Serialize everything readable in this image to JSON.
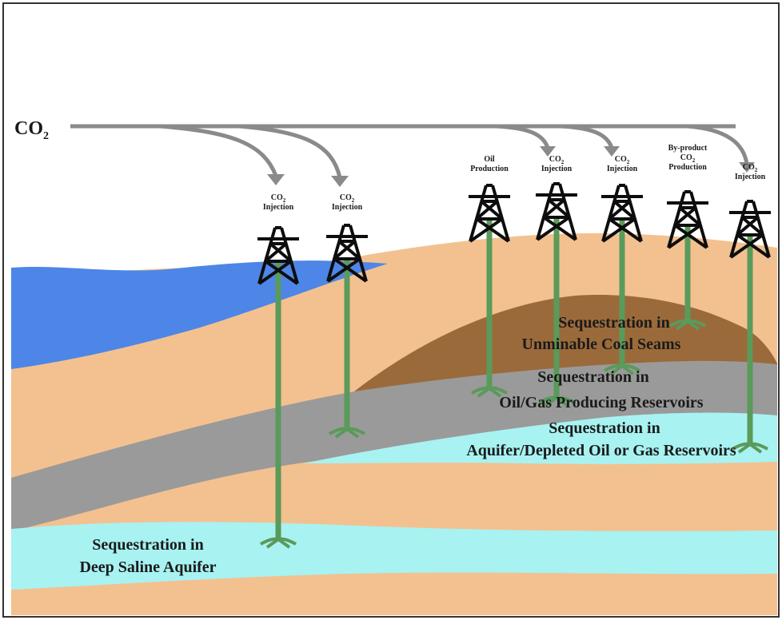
{
  "source": {
    "label": "CO",
    "subscript": "2"
  },
  "wells": [
    {
      "id": "well-1",
      "label_lines": [
        "CO",
        "Injection"
      ],
      "has_sub": true
    },
    {
      "id": "well-2",
      "label_lines": [
        "CO",
        "Injection"
      ],
      "has_sub": true
    },
    {
      "id": "well-3",
      "label_lines": [
        "Oil",
        "Production"
      ],
      "has_sub": false
    },
    {
      "id": "well-4",
      "label_lines": [
        "CO",
        "Injection"
      ],
      "has_sub": true
    },
    {
      "id": "well-5",
      "label_lines": [
        "CO",
        "Injection"
      ],
      "has_sub": true
    },
    {
      "id": "well-6",
      "label_lines": [
        "By-product",
        "CO",
        "Production"
      ],
      "has_sub": true
    },
    {
      "id": "well-7",
      "label_lines": [
        "CO",
        "Injection"
      ],
      "has_sub": true
    }
  ],
  "zones": {
    "coal": [
      "Sequestration in",
      "Unminable Coal Seams"
    ],
    "oilgas": [
      "Sequestration in",
      "Oil/Gas Producing Reservoirs"
    ],
    "aquifer_depleted": [
      "Sequestration in",
      "Aquifer/Depleted Oil or Gas Reservoirs"
    ],
    "deep_saline": [
      "Sequestration in",
      "Deep Saline Aquifer"
    ]
  },
  "colors": {
    "sand": "#f3c18f",
    "sea": "#4d86e6",
    "coal": "#9b6a3b",
    "gray": "#9a9a9a",
    "aqua": "#a8f2f2",
    "pipe": "#5a9a5a",
    "arrow": "#8a8a8a",
    "rig": "#0d0d0d"
  }
}
